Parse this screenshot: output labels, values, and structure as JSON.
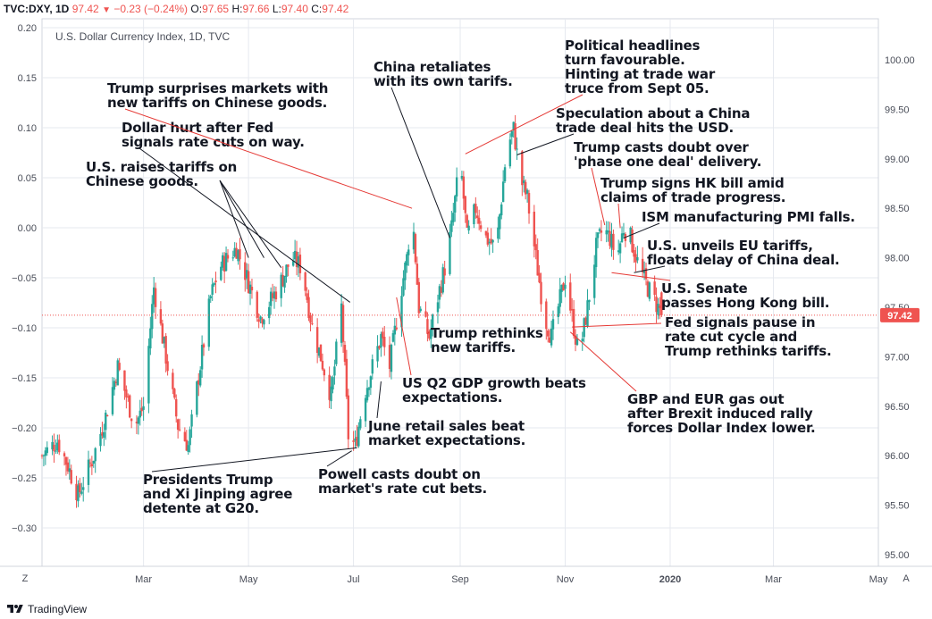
{
  "header": {
    "symbol": "TVC:DXY, 1D",
    "last": "97.42",
    "change": "−0.23 (−0.24%)",
    "open_label": "O:",
    "open": "97.65",
    "high_label": "H:",
    "high": "97.66",
    "low_label": "L:",
    "low": "97.40",
    "close_label": "C:",
    "close": "97.42"
  },
  "colors": {
    "up": "#26a69a",
    "down": "#ef5350",
    "annotation_red": "#e53935",
    "annotation_black": "#131722",
    "grid": "#e6e9ef",
    "axis_text": "#4a4e59",
    "price_line": "#ef5350"
  },
  "footer": {
    "brand": "TradingView",
    "left_button": "Z",
    "right_button": "A"
  },
  "chart_data": {
    "type": "candlestick",
    "title": "U.S. Dollar Currency Index, 1D, TVC",
    "left_axis": {
      "ticks": [
        "0.20",
        "0.15",
        "0.10",
        "0.05",
        "0.00",
        "−0.05",
        "−0.10",
        "−0.15",
        "−0.20",
        "−0.25",
        "−0.30"
      ],
      "range": [
        -0.3,
        0.2
      ]
    },
    "right_axis": {
      "ticks": [
        "100.00",
        "99.50",
        "99.00",
        "98.50",
        "98.00",
        "97.50",
        "97.00",
        "96.50",
        "96.00",
        "95.50",
        "95.00"
      ],
      "range": [
        95.0,
        100.0
      ]
    },
    "x_axis": {
      "ticks": [
        "Mar",
        "May",
        "Jul",
        "Sep",
        "Nov",
        "2020",
        "Mar",
        "May"
      ]
    },
    "last_price_label": "97.42",
    "anchors": [
      {
        "d": "2019-01-01",
        "v": 96.0
      },
      {
        "d": "2019-01-10",
        "v": 96.15
      },
      {
        "d": "2019-01-16",
        "v": 95.9
      },
      {
        "d": "2019-01-22",
        "v": 95.6
      },
      {
        "d": "2019-01-31",
        "v": 96.0
      },
      {
        "d": "2019-02-07",
        "v": 96.4
      },
      {
        "d": "2019-02-14",
        "v": 96.9
      },
      {
        "d": "2019-02-24",
        "v": 96.3
      },
      {
        "d": "2019-03-01",
        "v": 96.5
      },
      {
        "d": "2019-03-07",
        "v": 97.7
      },
      {
        "d": "2019-03-14",
        "v": 97.0
      },
      {
        "d": "2019-03-21",
        "v": 96.3
      },
      {
        "d": "2019-03-27",
        "v": 96.1
      },
      {
        "d": "2019-04-02",
        "v": 96.8
      },
      {
        "d": "2019-04-09",
        "v": 97.6
      },
      {
        "d": "2019-04-14",
        "v": 97.9
      },
      {
        "d": "2019-04-24",
        "v": 98.1
      },
      {
        "d": "2019-04-30",
        "v": 97.8
      },
      {
        "d": "2019-05-08",
        "v": 97.4
      },
      {
        "d": "2019-05-15",
        "v": 97.6
      },
      {
        "d": "2019-05-21",
        "v": 97.8
      },
      {
        "d": "2019-05-26",
        "v": 98.0
      },
      {
        "d": "2019-06-01",
        "v": 97.9
      },
      {
        "d": "2019-06-07",
        "v": 97.3
      },
      {
        "d": "2019-06-12",
        "v": 97.0
      },
      {
        "d": "2019-06-18",
        "v": 96.6
      },
      {
        "d": "2019-06-24",
        "v": 97.5
      },
      {
        "d": "2019-06-28",
        "v": 96.2
      },
      {
        "d": "2019-07-02",
        "v": 96.1
      },
      {
        "d": "2019-07-07",
        "v": 96.6
      },
      {
        "d": "2019-07-12",
        "v": 96.9
      },
      {
        "d": "2019-07-17",
        "v": 97.2
      },
      {
        "d": "2019-07-22",
        "v": 96.9
      },
      {
        "d": "2019-07-28",
        "v": 97.6
      },
      {
        "d": "2019-08-01",
        "v": 98.0
      },
      {
        "d": "2019-08-04",
        "v": 98.5
      },
      {
        "d": "2019-08-08",
        "v": 97.5
      },
      {
        "d": "2019-08-14",
        "v": 97.2
      },
      {
        "d": "2019-08-19",
        "v": 97.6
      },
      {
        "d": "2019-08-23",
        "v": 97.9
      },
      {
        "d": "2019-08-27",
        "v": 98.3
      },
      {
        "d": "2019-09-01",
        "v": 99.0
      },
      {
        "d": "2019-09-05",
        "v": 98.2
      },
      {
        "d": "2019-09-10",
        "v": 98.5
      },
      {
        "d": "2019-09-16",
        "v": 98.2
      },
      {
        "d": "2019-09-22",
        "v": 98.1
      },
      {
        "d": "2019-09-28",
        "v": 99.1
      },
      {
        "d": "2019-10-02",
        "v": 99.3
      },
      {
        "d": "2019-10-06",
        "v": 98.8
      },
      {
        "d": "2019-10-10",
        "v": 98.6
      },
      {
        "d": "2019-10-15",
        "v": 98.0
      },
      {
        "d": "2019-10-20",
        "v": 97.4
      },
      {
        "d": "2019-10-24",
        "v": 97.2
      },
      {
        "d": "2019-10-28",
        "v": 97.5
      },
      {
        "d": "2019-11-01",
        "v": 97.8
      },
      {
        "d": "2019-11-05",
        "v": 97.4
      },
      {
        "d": "2019-11-09",
        "v": 97.0
      },
      {
        "d": "2019-11-14",
        "v": 97.5
      },
      {
        "d": "2019-11-19",
        "v": 98.1
      },
      {
        "d": "2019-11-23",
        "v": 98.3
      },
      {
        "d": "2019-11-27",
        "v": 98.2
      },
      {
        "d": "2019-12-01",
        "v": 98.0
      },
      {
        "d": "2019-12-05",
        "v": 98.3
      },
      {
        "d": "2019-12-09",
        "v": 98.2
      },
      {
        "d": "2019-12-14",
        "v": 97.9
      },
      {
        "d": "2019-12-19",
        "v": 97.7
      },
      {
        "d": "2019-12-25",
        "v": 97.5
      },
      {
        "d": "2019-12-29",
        "v": 97.4
      }
    ],
    "annotations": [
      {
        "lines": [
          "U.S. raises tariffs on",
          "Chinese goods."
        ],
        "color": "black",
        "target": {
          "d": "2019-05-06",
          "v": 97.98
        },
        "segments": [
          {
            "d": "2019-05-01",
            "v": 98.0
          },
          {
            "d": "2019-05-10",
            "v": 98.0
          },
          {
            "d": "2019-05-20",
            "v": 97.9
          }
        ]
      },
      {
        "lines": [
          "Dollar hurt after Fed",
          "signals rate cuts on way."
        ],
        "color": "black",
        "target": {
          "d": "2019-06-29",
          "v": 97.55
        }
      },
      {
        "lines": [
          "Trump surprises markets with",
          "new tariffs on Chinese goods."
        ],
        "color": "red",
        "target": {
          "d": "2019-08-04",
          "v": 98.5
        }
      },
      {
        "lines": [
          "China retaliates",
          "with its own tarifs."
        ],
        "color": "black",
        "target": {
          "d": "2019-08-26",
          "v": 98.2
        }
      },
      {
        "lines": [
          "Political headlines",
          "turn favourable.",
          "Hinting at trade war",
          "truce from Sept 05."
        ],
        "color": "red",
        "target": {
          "d": "2019-09-04",
          "v": 99.05
        }
      },
      {
        "lines": [
          "Speculation about a China",
          "trade deal hits the USD."
        ],
        "color": "black",
        "target": {
          "d": "2019-10-04",
          "v": 99.04
        }
      },
      {
        "lines": [
          "Trump casts doubt over",
          "'phase one deal' delivery."
        ],
        "color": "red",
        "target": {
          "d": "2019-11-24",
          "v": 98.33
        }
      },
      {
        "lines": [
          "Trump signs HK bill amid",
          "claims of trade progress."
        ],
        "color": "red",
        "target": {
          "d": "2019-12-03",
          "v": 98.3
        }
      },
      {
        "lines": [
          "ISM manufacturing PMI falls."
        ],
        "color": "black",
        "target": {
          "d": "2019-12-05",
          "v": 98.2
        }
      },
      {
        "lines": [
          "U.S. unveils EU tariffs,",
          "floats delay of China deal."
        ],
        "color": "black",
        "target": {
          "d": "2019-12-11",
          "v": 97.85
        }
      },
      {
        "lines": [
          "U.S. Senate",
          "passes Hong Kong bill."
        ],
        "color": "red",
        "target": {
          "d": "2019-11-28",
          "v": 97.85
        }
      },
      {
        "lines": [
          "Fed signals pause in",
          "rate cut cycle and",
          "Trump rethinks tariffs."
        ],
        "color": "red",
        "target": {
          "d": "2019-11-05",
          "v": 97.3
        }
      },
      {
        "lines": [
          "GBP and EUR gas out",
          "after Brexit induced rally",
          "forces Dollar Index lower."
        ],
        "color": "red",
        "target": {
          "d": "2019-11-04",
          "v": 97.25
        }
      },
      {
        "lines": [
          "Trump rethinks",
          "new tariffs."
        ],
        "color": "red",
        "target": {
          "d": "2019-08-14",
          "v": 97.25
        }
      },
      {
        "lines": [
          "US Q2 GDP growth beats",
          "expectations."
        ],
        "color": "red",
        "target": {
          "d": "2019-07-26",
          "v": 97.6
        }
      },
      {
        "lines": [
          "June retail sales beat",
          "market expectations."
        ],
        "color": "black",
        "target": {
          "d": "2019-07-17",
          "v": 96.75
        }
      },
      {
        "lines": [
          "Powell casts doubt on",
          "market's rate cut bets."
        ],
        "color": "black",
        "target": {
          "d": "2019-06-30",
          "v": 96.05
        }
      },
      {
        "lines": [
          "Presidents Trump",
          "and Xi Jinping agree",
          "detente at G20."
        ],
        "color": "black",
        "target": {
          "d": "2019-07-03",
          "v": 96.08
        }
      }
    ]
  }
}
